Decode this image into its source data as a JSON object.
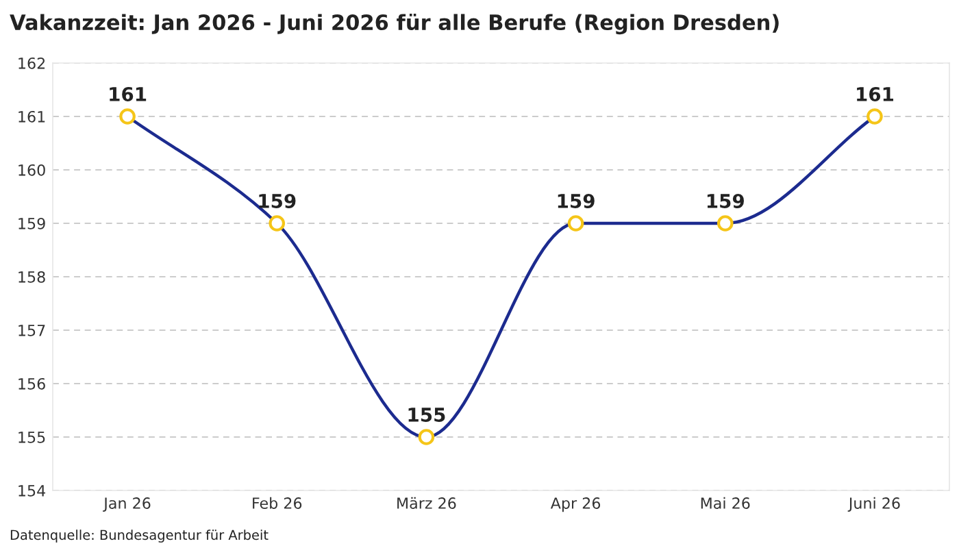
{
  "chart_data": {
    "type": "line",
    "title": "Vakanzzeit: Jan 2026 - Juni 2026 für alle Berufe (Region Dresden)",
    "categories": [
      "Jan 26",
      "Feb 26",
      "März 26",
      "Apr 26",
      "Mai 26",
      "Juni 26"
    ],
    "series": [
      {
        "color": "#1c2b8f",
        "values": [
          161,
          159,
          155,
          159,
          159,
          161
        ]
      }
    ],
    "marker": "circle",
    "ylim": [
      154,
      162
    ],
    "yticks": [
      154,
      155,
      156,
      157,
      158,
      159,
      160,
      161,
      162
    ],
    "grid": "y",
    "data_labels": true,
    "legend": false,
    "annotations": [
      "Datenquelle: Bundesagentur für Arbeit"
    ]
  }
}
